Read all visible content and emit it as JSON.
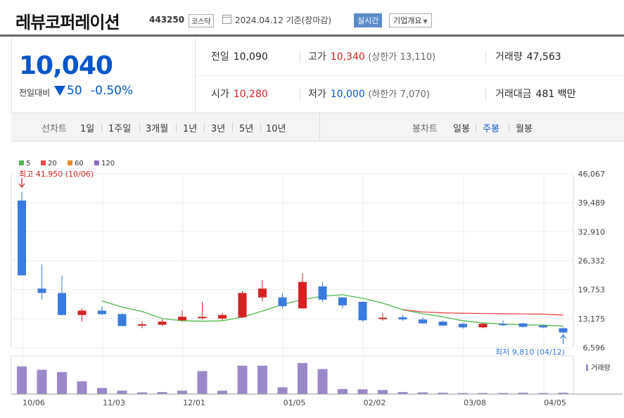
{
  "header": {
    "title": "레뷰코퍼레이션",
    "code": "443250",
    "market": "코스닥",
    "date": "2024.04.12",
    "date_suffix": "기준(장마감)",
    "realtime_label": "실시간",
    "company_label": "기업개요"
  },
  "summary": {
    "price": "10,040",
    "change_label": "전일대비",
    "change_value": "50",
    "change_pct": "-0.50%",
    "prev_close_label": "전일",
    "prev_close": "10,090",
    "high_label": "고가",
    "high": "10,340",
    "upper_limit_label": "(상한가",
    "upper_limit": "13,110)",
    "volume_label": "거래량",
    "volume": "47,563",
    "open_label": "시가",
    "open": "10,280",
    "low_label": "저가",
    "low": "10,000",
    "lower_limit_label": "(하한가",
    "lower_limit": "7,070)",
    "amount_label": "거래대금",
    "amount": "481",
    "amount_unit": "백만"
  },
  "toolbar": {
    "line_chart_label": "선차트",
    "periods": [
      "1일",
      "1주일",
      "3개월",
      "1년",
      "3년",
      "5년",
      "10년"
    ],
    "candle_label": "봉차트",
    "candles": [
      "일봉",
      "주봉",
      "월봉"
    ],
    "active_candle": "주봉"
  },
  "chart_data": {
    "type": "candlestick",
    "legend": [
      {
        "name": "5",
        "color": "#4cb848"
      },
      {
        "name": "20",
        "color": "#e84a4a"
      },
      {
        "name": "60",
        "color": "#f08a24"
      },
      {
        "name": "120",
        "color": "#8e6cc4"
      }
    ],
    "y_ticks": [
      "46,067",
      "39,489",
      "32,910",
      "26,332",
      "19,753",
      "13,175",
      "6,596"
    ],
    "ylim": [
      6596,
      46067
    ],
    "x_ticks": [
      {
        "label": "10/06",
        "index": 0
      },
      {
        "label": "11/03",
        "index": 4
      },
      {
        "label": "12/01",
        "index": 8
      },
      {
        "label": "01/05",
        "index": 13
      },
      {
        "label": "02/02",
        "index": 17
      },
      {
        "label": "03/08",
        "index": 22
      },
      {
        "label": "04/05",
        "index": 26
      }
    ],
    "max_label": "최고 41,950 (10/06)",
    "min_label": "최저 9,810 (04/12)",
    "volume_label": "거래량",
    "up_color": "#d62222",
    "down_color": "#3a7be0",
    "candles": [
      {
        "o": 40000,
        "h": 41950,
        "l": 23000,
        "c": 23000,
        "v": 82
      },
      {
        "o": 20000,
        "h": 25500,
        "l": 17500,
        "c": 19000,
        "v": 72
      },
      {
        "o": 19000,
        "h": 23000,
        "l": 14000,
        "c": 14000,
        "v": 65
      },
      {
        "o": 14000,
        "h": 15500,
        "l": 12500,
        "c": 15000,
        "v": 38
      },
      {
        "o": 15000,
        "h": 16000,
        "l": 14000,
        "c": 14200,
        "v": 18
      },
      {
        "o": 14200,
        "h": 14400,
        "l": 11500,
        "c": 11500,
        "v": 10
      },
      {
        "o": 11800,
        "h": 12500,
        "l": 11000,
        "c": 11900,
        "v": 5
      },
      {
        "o": 11800,
        "h": 13000,
        "l": 11500,
        "c": 12500,
        "v": 6
      },
      {
        "o": 12800,
        "h": 15000,
        "l": 12500,
        "c": 13600,
        "v": 10
      },
      {
        "o": 13400,
        "h": 17000,
        "l": 13000,
        "c": 13600,
        "v": 68
      },
      {
        "o": 13200,
        "h": 14500,
        "l": 12800,
        "c": 14000,
        "v": 10
      },
      {
        "o": 13500,
        "h": 19500,
        "l": 13300,
        "c": 19000,
        "v": 84
      },
      {
        "o": 18000,
        "h": 22000,
        "l": 17000,
        "c": 20000,
        "v": 84
      },
      {
        "o": 18000,
        "h": 19000,
        "l": 15500,
        "c": 16000,
        "v": 20
      },
      {
        "o": 15500,
        "h": 23500,
        "l": 15500,
        "c": 21500,
        "v": 92
      },
      {
        "o": 20500,
        "h": 21500,
        "l": 17000,
        "c": 17500,
        "v": 74
      },
      {
        "o": 18000,
        "h": 18000,
        "l": 15500,
        "c": 16200,
        "v": 15
      },
      {
        "o": 17000,
        "h": 17000,
        "l": 12500,
        "c": 12800,
        "v": 14
      },
      {
        "o": 13200,
        "h": 14400,
        "l": 12700,
        "c": 13400,
        "v": 12
      },
      {
        "o": 13500,
        "h": 14000,
        "l": 12700,
        "c": 13000,
        "v": 6
      },
      {
        "o": 13000,
        "h": 13500,
        "l": 12000,
        "c": 12100,
        "v": 5
      },
      {
        "o": 12500,
        "h": 12700,
        "l": 11500,
        "c": 11600,
        "v": 4
      },
      {
        "o": 12000,
        "h": 12200,
        "l": 10900,
        "c": 11200,
        "v": 3
      },
      {
        "o": 11200,
        "h": 12200,
        "l": 11000,
        "c": 12000,
        "v": 3
      },
      {
        "o": 12000,
        "h": 12800,
        "l": 11500,
        "c": 11800,
        "v": 3
      },
      {
        "o": 12100,
        "h": 12200,
        "l": 11200,
        "c": 11300,
        "v": 4
      },
      {
        "o": 11600,
        "h": 11800,
        "l": 11000,
        "c": 11200,
        "v": 3
      },
      {
        "o": 11000,
        "h": 11200,
        "l": 9810,
        "c": 10040,
        "v": 4
      }
    ],
    "ma5": [
      null,
      null,
      null,
      null,
      17200,
      15800,
      14800,
      13200,
      12700,
      12600,
      12700,
      13500,
      14900,
      16400,
      17500,
      18300,
      18600,
      17800,
      16700,
      15200,
      14300,
      13600,
      12700,
      12200,
      11950,
      11800,
      11700,
      11500
    ],
    "ma20": [
      null,
      null,
      null,
      null,
      null,
      null,
      null,
      null,
      null,
      null,
      null,
      null,
      null,
      null,
      null,
      null,
      null,
      null,
      null,
      15200,
      14700,
      14500,
      14400,
      14350,
      14300,
      14250,
      14200,
      14000
    ]
  }
}
